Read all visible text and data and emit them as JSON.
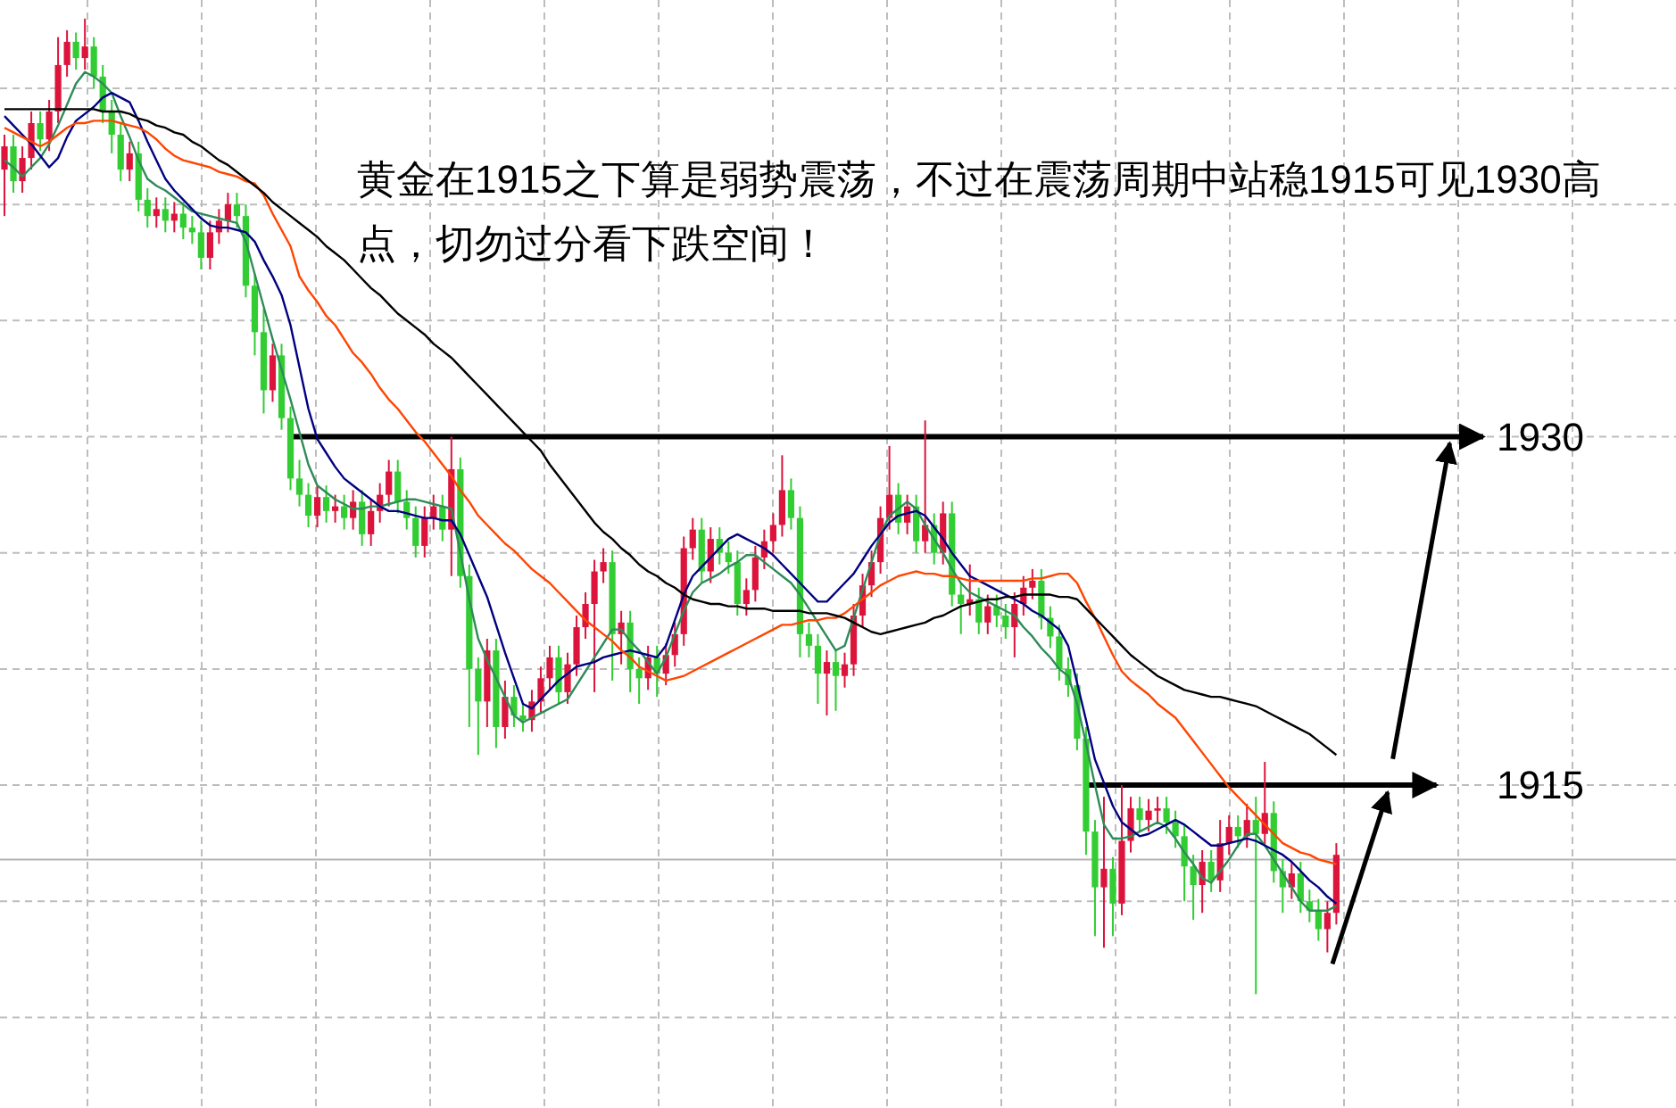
{
  "chart_data": {
    "type": "candlestick",
    "categories": [
      null,
      null,
      null,
      null,
      null,
      null,
      null,
      null,
      null,
      null,
      null,
      null,
      null,
      null,
      null,
      null,
      null,
      null,
      null,
      null,
      null,
      null,
      null,
      null,
      null,
      null,
      null,
      null,
      null,
      null,
      null,
      null,
      null,
      null,
      null,
      null,
      null,
      null,
      null,
      null,
      null,
      null,
      null,
      null,
      null,
      null,
      null,
      null,
      null,
      null,
      null,
      null,
      null,
      null,
      null,
      null,
      null,
      null,
      null,
      null,
      null,
      null,
      null,
      null,
      null,
      null,
      null,
      null,
      null,
      null,
      null,
      null,
      null,
      null,
      null,
      null,
      null,
      null,
      null,
      null,
      null,
      null,
      null,
      null,
      null,
      null,
      null,
      null,
      null,
      null,
      null,
      null,
      null,
      null,
      null,
      null,
      null,
      null,
      null,
      null,
      null,
      null,
      null,
      null,
      null,
      null,
      null,
      null,
      null,
      null,
      null,
      null,
      null,
      null,
      null,
      null,
      null,
      null,
      null,
      null,
      null,
      null,
      null,
      null,
      null,
      null,
      null,
      null,
      null,
      null,
      null,
      null,
      null,
      null,
      null,
      null,
      null,
      null,
      null,
      null,
      null,
      null,
      null,
      null,
      null,
      null,
      null,
      null,
      null,
      null
    ],
    "ohlc": [
      [
        1941.5,
        1943.0,
        1939.5,
        1942.5
      ],
      [
        1942.5,
        1943.0,
        1940.5,
        1941.0
      ],
      [
        1941.0,
        1942.5,
        1940.5,
        1942.0
      ],
      [
        1942.0,
        1944.0,
        1941.5,
        1943.5
      ],
      [
        1943.5,
        1944.0,
        1942.3,
        1942.8
      ],
      [
        1942.8,
        1944.5,
        1942.3,
        1944.0
      ],
      [
        1944.0,
        1947.2,
        1943.5,
        1946.0
      ],
      [
        1946.0,
        1947.5,
        1945.5,
        1947.0
      ],
      [
        1947.0,
        1947.4,
        1945.8,
        1946.3
      ],
      [
        1946.3,
        1948.0,
        1945.8,
        1946.8
      ],
      [
        1946.8,
        1947.2,
        1945.0,
        1945.5
      ],
      [
        1945.5,
        1946.0,
        1943.5,
        1944.0
      ],
      [
        1944.0,
        1944.5,
        1942.2,
        1943.0
      ],
      [
        1943.0,
        1943.5,
        1941.0,
        1941.5
      ],
      [
        1941.5,
        1942.7,
        1941.0,
        1942.2
      ],
      [
        1942.2,
        1942.7,
        1939.7,
        1940.2
      ],
      [
        1940.2,
        1940.7,
        1939.0,
        1939.5
      ],
      [
        1939.5,
        1940.3,
        1939.0,
        1939.8
      ],
      [
        1939.8,
        1940.3,
        1938.8,
        1939.3
      ],
      [
        1939.3,
        1940.1,
        1938.8,
        1939.6
      ],
      [
        1939.6,
        1940.1,
        1938.5,
        1939.0
      ],
      [
        1939.0,
        1939.5,
        1938.3,
        1938.8
      ],
      [
        1938.8,
        1939.3,
        1937.2,
        1937.7
      ],
      [
        1937.7,
        1939.3,
        1937.2,
        1938.8
      ],
      [
        1938.8,
        1939.8,
        1938.3,
        1939.3
      ],
      [
        1939.3,
        1940.5,
        1938.8,
        1940.0
      ],
      [
        1940.0,
        1940.5,
        1939.0,
        1939.5
      ],
      [
        1939.5,
        1940.0,
        1936.0,
        1936.5
      ],
      [
        1936.5,
        1937.0,
        1933.5,
        1934.5
      ],
      [
        1934.5,
        1935.5,
        1931.0,
        1932.0
      ],
      [
        1932.0,
        1934.0,
        1931.5,
        1933.5
      ],
      [
        1933.5,
        1934.0,
        1930.3,
        1930.8
      ],
      [
        1930.8,
        1931.3,
        1927.7,
        1928.2
      ],
      [
        1928.2,
        1929.0,
        1927.0,
        1927.5
      ],
      [
        1927.5,
        1928.0,
        1926.1,
        1926.6
      ],
      [
        1926.6,
        1927.9,
        1926.1,
        1927.4
      ],
      [
        1927.4,
        1927.9,
        1926.3,
        1926.8
      ],
      [
        1926.8,
        1927.5,
        1926.3,
        1927.0
      ],
      [
        1927.0,
        1927.5,
        1926.0,
        1926.5
      ],
      [
        1926.5,
        1927.7,
        1926.0,
        1927.2
      ],
      [
        1927.2,
        1927.7,
        1925.3,
        1925.8
      ],
      [
        1925.8,
        1927.3,
        1925.3,
        1926.8
      ],
      [
        1926.8,
        1928.0,
        1926.3,
        1927.5
      ],
      [
        1927.5,
        1929.0,
        1927.0,
        1928.5
      ],
      [
        1928.5,
        1929.0,
        1926.7,
        1927.2
      ],
      [
        1927.2,
        1927.7,
        1926.0,
        1926.5
      ],
      [
        1926.5,
        1927.0,
        1924.8,
        1925.3
      ],
      [
        1925.3,
        1927.0,
        1924.8,
        1926.5
      ],
      [
        1926.5,
        1927.5,
        1926.0,
        1927.0
      ],
      [
        1927.0,
        1927.5,
        1925.5,
        1926.0
      ],
      [
        1926.0,
        1930.0,
        1924.0,
        1928.6
      ],
      [
        1928.6,
        1929.1,
        1923.5,
        1924.0
      ],
      [
        1924.0,
        1924.5,
        1917.5,
        1920.0
      ],
      [
        1920.0,
        1920.5,
        1916.3,
        1918.6
      ],
      [
        1918.6,
        1921.3,
        1917.5,
        1920.8
      ],
      [
        1920.8,
        1921.3,
        1916.6,
        1917.5
      ],
      [
        1917.5,
        1919.5,
        1917.0,
        1918.8
      ],
      [
        1918.8,
        1919.3,
        1917.5,
        1918.0
      ],
      [
        1918.0,
        1918.5,
        1917.3,
        1917.8
      ],
      [
        1917.8,
        1919.1,
        1917.3,
        1918.6
      ],
      [
        1918.6,
        1920.1,
        1918.1,
        1919.6
      ],
      [
        1919.6,
        1921.0,
        1919.1,
        1920.5
      ],
      [
        1920.5,
        1921.0,
        1918.5,
        1919.0
      ],
      [
        1919.0,
        1920.7,
        1918.5,
        1920.2
      ],
      [
        1920.2,
        1922.3,
        1919.7,
        1921.8
      ],
      [
        1921.8,
        1923.3,
        1921.3,
        1922.8
      ],
      [
        1922.8,
        1924.7,
        1919.0,
        1924.2
      ],
      [
        1924.2,
        1925.2,
        1923.7,
        1924.6
      ],
      [
        1924.6,
        1925.1,
        1919.5,
        1921.5
      ],
      [
        1921.5,
        1922.5,
        1920.2,
        1922.0
      ],
      [
        1922.0,
        1922.5,
        1919.0,
        1920.0
      ],
      [
        1920.0,
        1920.5,
        1918.5,
        1919.6
      ],
      [
        1919.6,
        1921.0,
        1919.1,
        1920.5
      ],
      [
        1920.5,
        1921.0,
        1918.8,
        1919.8
      ],
      [
        1919.8,
        1921.1,
        1919.3,
        1920.6
      ],
      [
        1920.6,
        1922.0,
        1920.1,
        1921.5
      ],
      [
        1921.5,
        1925.7,
        1921.0,
        1925.2
      ],
      [
        1925.2,
        1926.5,
        1924.7,
        1926.0
      ],
      [
        1926.0,
        1926.5,
        1923.7,
        1924.2
      ],
      [
        1924.2,
        1926.1,
        1923.7,
        1925.6
      ],
      [
        1925.6,
        1926.1,
        1924.5,
        1925.0
      ],
      [
        1925.0,
        1925.5,
        1924.1,
        1924.6
      ],
      [
        1924.6,
        1925.1,
        1922.3,
        1922.8
      ],
      [
        1922.8,
        1923.9,
        1922.3,
        1923.4
      ],
      [
        1923.4,
        1925.3,
        1922.9,
        1924.8
      ],
      [
        1924.8,
        1926.0,
        1924.3,
        1925.5
      ],
      [
        1925.5,
        1926.7,
        1925.0,
        1926.2
      ],
      [
        1926.2,
        1929.2,
        1925.7,
        1927.7
      ],
      [
        1927.7,
        1928.2,
        1926.0,
        1926.5
      ],
      [
        1926.5,
        1927.0,
        1920.5,
        1921.5
      ],
      [
        1921.5,
        1922.0,
        1920.5,
        1921.0
      ],
      [
        1921.0,
        1921.5,
        1918.5,
        1919.8
      ],
      [
        1919.8,
        1920.8,
        1918.0,
        1920.3
      ],
      [
        1920.3,
        1920.8,
        1918.2,
        1919.7
      ],
      [
        1919.7,
        1920.7,
        1919.2,
        1920.2
      ],
      [
        1920.2,
        1922.8,
        1919.7,
        1922.3
      ],
      [
        1922.3,
        1924.1,
        1921.8,
        1923.6
      ],
      [
        1923.6,
        1925.1,
        1923.1,
        1924.6
      ],
      [
        1924.6,
        1927.0,
        1924.1,
        1926.5
      ],
      [
        1926.5,
        1929.6,
        1926.0,
        1927.5
      ],
      [
        1927.5,
        1928.0,
        1925.8,
        1926.3
      ],
      [
        1926.3,
        1927.5,
        1925.8,
        1927.0
      ],
      [
        1927.0,
        1927.5,
        1925.0,
        1925.5
      ],
      [
        1925.5,
        1930.7,
        1925.0,
        1926.2
      ],
      [
        1926.2,
        1926.7,
        1924.5,
        1925.0
      ],
      [
        1925.0,
        1927.2,
        1924.5,
        1926.7
      ],
      [
        1926.7,
        1927.2,
        1922.7,
        1923.2
      ],
      [
        1923.2,
        1923.7,
        1921.5,
        1922.8
      ],
      [
        1922.8,
        1924.5,
        1922.3,
        1923.0
      ],
      [
        1923.0,
        1923.5,
        1921.5,
        1922.0
      ],
      [
        1922.0,
        1923.2,
        1921.5,
        1922.7
      ],
      [
        1922.7,
        1923.2,
        1921.8,
        1922.3
      ],
      [
        1922.3,
        1922.8,
        1921.3,
        1921.8
      ],
      [
        1921.8,
        1923.3,
        1920.5,
        1922.8
      ],
      [
        1922.8,
        1924.0,
        1922.3,
        1923.5
      ],
      [
        1923.5,
        1924.3,
        1923.0,
        1923.8
      ],
      [
        1923.8,
        1924.3,
        1921.7,
        1922.2
      ],
      [
        1922.2,
        1922.7,
        1920.9,
        1921.4
      ],
      [
        1921.4,
        1921.9,
        1919.5,
        1920.0
      ],
      [
        1920.0,
        1920.5,
        1918.8,
        1919.3
      ],
      [
        1919.3,
        1919.8,
        1916.5,
        1917.0
      ],
      [
        1917.0,
        1917.5,
        1912.0,
        1913.0
      ],
      [
        1913.0,
        1913.5,
        1908.5,
        1910.6
      ],
      [
        1910.6,
        1914.5,
        1908.0,
        1911.4
      ],
      [
        1911.4,
        1911.9,
        1908.5,
        1909.9
      ],
      [
        1909.9,
        1915.0,
        1909.4,
        1912.6
      ],
      [
        1912.6,
        1914.5,
        1912.1,
        1914.0
      ],
      [
        1914.0,
        1914.5,
        1913.0,
        1913.5
      ],
      [
        1913.5,
        1914.4,
        1913.0,
        1913.9
      ],
      [
        1913.9,
        1914.5,
        1913.4,
        1914.0
      ],
      [
        1914.0,
        1914.5,
        1912.9,
        1913.4
      ],
      [
        1913.4,
        1913.9,
        1912.3,
        1912.8
      ],
      [
        1912.8,
        1913.3,
        1910.0,
        1911.5
      ],
      [
        1911.5,
        1912.0,
        1909.2,
        1910.7
      ],
      [
        1910.7,
        1912.2,
        1909.5,
        1911.7
      ],
      [
        1911.7,
        1912.2,
        1910.4,
        1910.9
      ],
      [
        1910.9,
        1913.5,
        1910.4,
        1912.5
      ],
      [
        1912.5,
        1913.7,
        1912.0,
        1913.2
      ],
      [
        1913.2,
        1913.7,
        1912.3,
        1912.8
      ],
      [
        1912.8,
        1914.2,
        1912.3,
        1913.5
      ],
      [
        1913.5,
        1914.5,
        1906.0,
        1912.9
      ],
      [
        1912.9,
        1916.0,
        1912.4,
        1913.8
      ],
      [
        1913.8,
        1914.3,
        1910.8,
        1911.3
      ],
      [
        1911.3,
        1911.8,
        1909.5,
        1910.6
      ],
      [
        1910.6,
        1911.7,
        1910.1,
        1911.2
      ],
      [
        1911.2,
        1911.7,
        1909.5,
        1910.0
      ],
      [
        1910.0,
        1910.5,
        1909.1,
        1909.6
      ],
      [
        1909.6,
        1910.1,
        1908.3,
        1908.8
      ],
      [
        1908.8,
        1910.0,
        1907.8,
        1909.5
      ],
      [
        1909.5,
        1912.5,
        1909.0,
        1912.0
      ]
    ],
    "series": [
      {
        "type": "line",
        "color": "#2e8b57",
        "values": [
          1941.9,
          1941.6,
          1941.2,
          1941.6,
          1942.0,
          1942.6,
          1943.4,
          1944.3,
          1945.2,
          1945.7,
          1945.5,
          1945.2,
          1944.8,
          1943.8,
          1942.9,
          1941.9,
          1941.1,
          1940.8,
          1940.6,
          1940.3,
          1940.0,
          1939.7,
          1939.6,
          1939.5,
          1939.4,
          1939.3,
          1939.2,
          1938.4,
          1937.0,
          1935.6,
          1934.2,
          1932.9,
          1931.6,
          1930.2,
          1928.8,
          1927.9,
          1927.6,
          1927.3,
          1927.1,
          1926.9,
          1926.9,
          1927.0,
          1927.0,
          1927.1,
          1927.2,
          1927.3,
          1927.3,
          1927.2,
          1927.1,
          1927.0,
          1926.9,
          1925.0,
          1923.0,
          1921.3,
          1920.4,
          1919.6,
          1918.8,
          1918.0,
          1917.7,
          1917.9,
          1918.1,
          1918.3,
          1918.5,
          1918.7,
          1919.3,
          1919.9,
          1920.5,
          1921.1,
          1921.7,
          1921.7,
          1921.2,
          1920.8,
          1920.3,
          1919.8,
          1920.5,
          1921.5,
          1922.5,
          1923.3,
          1923.7,
          1923.9,
          1924.1,
          1924.4,
          1924.6,
          1924.9,
          1924.9,
          1924.6,
          1924.3,
          1924.0,
          1923.7,
          1923.2,
          1922.6,
          1922.0,
          1921.4,
          1920.8,
          1921.0,
          1922.2,
          1923.4,
          1924.6,
          1925.8,
          1926.6,
          1926.9,
          1927.2,
          1926.9,
          1926.2,
          1925.6,
          1925.0,
          1924.3,
          1923.7,
          1923.3,
          1923.1,
          1922.9,
          1922.7,
          1922.5,
          1922.3,
          1921.8,
          1921.4,
          1920.9,
          1920.5,
          1920.0,
          1919.7,
          1918.5,
          1916.8,
          1915.0,
          1913.3,
          1912.7,
          1912.7,
          1912.8,
          1913.0,
          1913.2,
          1913.4,
          1913.2,
          1912.7,
          1912.1,
          1911.6,
          1911.0,
          1910.8,
          1911.3,
          1911.8,
          1912.4,
          1912.9,
          1912.9,
          1912.4,
          1911.8,
          1911.2,
          1910.6,
          1910.0,
          1909.6,
          1909.6,
          1909.6,
          1909.8
        ]
      },
      {
        "type": "line",
        "color": "#000080",
        "values": [
          1943.8,
          1943.4,
          1943.0,
          1942.6,
          1942.1,
          1941.6,
          1942.0,
          1942.9,
          1943.6,
          1943.9,
          1944.2,
          1944.6,
          1944.8,
          1944.6,
          1944.4,
          1943.6,
          1942.7,
          1941.9,
          1941.1,
          1940.6,
          1940.2,
          1939.8,
          1939.4,
          1939.1,
          1939.0,
          1939.0,
          1938.9,
          1938.8,
          1938.4,
          1937.6,
          1936.9,
          1936.1,
          1934.8,
          1933.0,
          1931.2,
          1929.9,
          1929.3,
          1928.7,
          1928.2,
          1927.9,
          1927.6,
          1927.3,
          1927.0,
          1926.8,
          1926.8,
          1926.7,
          1926.6,
          1926.5,
          1926.5,
          1926.4,
          1926.4,
          1925.8,
          1924.9,
          1924.0,
          1923.1,
          1921.9,
          1920.7,
          1919.6,
          1918.5,
          1918.3,
          1918.7,
          1919.1,
          1919.5,
          1919.8,
          1920.1,
          1920.2,
          1920.3,
          1920.5,
          1920.6,
          1920.7,
          1920.8,
          1920.7,
          1920.6,
          1920.5,
          1921.0,
          1922.1,
          1923.2,
          1924.0,
          1924.4,
          1924.8,
          1925.2,
          1925.6,
          1925.8,
          1925.6,
          1925.4,
          1925.2,
          1924.9,
          1924.5,
          1924.1,
          1923.7,
          1923.3,
          1922.9,
          1922.9,
          1923.3,
          1923.7,
          1924.1,
          1924.7,
          1925.3,
          1925.8,
          1926.3,
          1926.6,
          1926.7,
          1926.8,
          1926.6,
          1926.1,
          1925.6,
          1925.0,
          1924.5,
          1924.0,
          1923.8,
          1923.6,
          1923.4,
          1923.2,
          1923.0,
          1922.8,
          1922.5,
          1922.3,
          1922.0,
          1921.7,
          1921.0,
          1919.4,
          1917.8,
          1916.1,
          1915.1,
          1914.1,
          1913.4,
          1913.1,
          1912.8,
          1912.9,
          1913.1,
          1913.3,
          1913.5,
          1913.3,
          1913.0,
          1912.7,
          1912.4,
          1912.4,
          1912.5,
          1912.6,
          1912.7,
          1912.6,
          1912.4,
          1912.2,
          1912.0,
          1911.7,
          1911.3,
          1910.9,
          1910.6,
          1910.2,
          1909.9
        ]
      },
      {
        "type": "line",
        "color": "#ff4500",
        "values": [
          1943.3,
          1943.1,
          1942.9,
          1942.7,
          1942.5,
          1942.7,
          1943.0,
          1943.3,
          1943.5,
          1943.5,
          1943.6,
          1943.6,
          1943.6,
          1943.5,
          1943.4,
          1943.3,
          1943.1,
          1942.8,
          1942.4,
          1942.1,
          1941.9,
          1941.8,
          1941.7,
          1941.6,
          1941.4,
          1941.3,
          1941.2,
          1941.0,
          1940.9,
          1940.4,
          1939.6,
          1938.9,
          1938.2,
          1936.9,
          1936.3,
          1935.8,
          1935.2,
          1934.8,
          1934.2,
          1933.6,
          1933.2,
          1932.7,
          1932.1,
          1931.6,
          1931.2,
          1930.7,
          1930.2,
          1929.8,
          1929.3,
          1928.8,
          1928.3,
          1927.7,
          1927.2,
          1926.6,
          1926.2,
          1925.8,
          1925.4,
          1925.1,
          1924.7,
          1924.3,
          1924.0,
          1923.7,
          1923.3,
          1922.9,
          1922.5,
          1922.1,
          1921.8,
          1921.5,
          1921.2,
          1920.8,
          1920.5,
          1920.1,
          1919.9,
          1919.7,
          1919.5,
          1919.6,
          1919.7,
          1919.9,
          1920.1,
          1920.3,
          1920.5,
          1920.7,
          1920.9,
          1921.1,
          1921.3,
          1921.5,
          1921.7,
          1921.9,
          1921.9,
          1922.0,
          1922.1,
          1922.1,
          1922.2,
          1922.2,
          1922.4,
          1922.7,
          1923.0,
          1923.3,
          1923.6,
          1923.8,
          1924.0,
          1924.1,
          1924.2,
          1924.1,
          1924.1,
          1924.0,
          1924.0,
          1923.9,
          1923.8,
          1923.8,
          1923.8,
          1923.8,
          1923.8,
          1923.8,
          1923.8,
          1923.9,
          1923.9,
          1924.0,
          1924.1,
          1924.1,
          1923.7,
          1922.9,
          1922.2,
          1921.4,
          1920.6,
          1919.9,
          1919.5,
          1919.2,
          1918.9,
          1918.5,
          1918.2,
          1917.9,
          1917.4,
          1916.9,
          1916.4,
          1915.9,
          1915.4,
          1914.9,
          1914.5,
          1914.1,
          1913.7,
          1913.3,
          1912.9,
          1912.5,
          1912.3,
          1912.1,
          1912.0,
          1911.8,
          1911.7,
          1911.6
        ]
      },
      {
        "type": "line",
        "color": "#000000",
        "values": [
          1944.1,
          1944.1,
          1944.1,
          1944.1,
          1944.1,
          1944.1,
          1944.1,
          1944.1,
          1944.1,
          1944.1,
          1944.1,
          1944.0,
          1944.0,
          1944.0,
          1943.9,
          1943.7,
          1943.6,
          1943.4,
          1943.3,
          1943.1,
          1943.0,
          1942.7,
          1942.5,
          1942.2,
          1941.9,
          1941.7,
          1941.4,
          1941.1,
          1940.8,
          1940.5,
          1940.1,
          1939.8,
          1939.5,
          1939.2,
          1938.9,
          1938.6,
          1938.2,
          1937.9,
          1937.6,
          1937.2,
          1936.8,
          1936.4,
          1936.1,
          1935.7,
          1935.3,
          1935.0,
          1934.7,
          1934.4,
          1934.0,
          1933.7,
          1933.4,
          1933.0,
          1932.6,
          1932.2,
          1931.8,
          1931.4,
          1931.0,
          1930.6,
          1930.2,
          1929.8,
          1929.4,
          1928.8,
          1928.3,
          1927.8,
          1927.3,
          1926.8,
          1926.3,
          1925.9,
          1925.6,
          1925.2,
          1924.9,
          1924.5,
          1924.2,
          1924.0,
          1923.7,
          1923.5,
          1923.2,
          1923.0,
          1922.9,
          1922.8,
          1922.8,
          1922.7,
          1922.7,
          1922.6,
          1922.6,
          1922.6,
          1922.5,
          1922.5,
          1922.5,
          1922.5,
          1922.4,
          1922.4,
          1922.4,
          1922.3,
          1922.2,
          1922.0,
          1921.8,
          1921.6,
          1921.5,
          1921.6,
          1921.7,
          1921.8,
          1921.9,
          1922.0,
          1922.2,
          1922.3,
          1922.5,
          1922.7,
          1922.8,
          1922.9,
          1923.0,
          1923.0,
          1923.1,
          1923.1,
          1923.2,
          1923.2,
          1923.2,
          1923.2,
          1923.1,
          1923.1,
          1923.0,
          1922.6,
          1922.2,
          1921.8,
          1921.4,
          1921.0,
          1920.6,
          1920.3,
          1920.0,
          1919.7,
          1919.5,
          1919.3,
          1919.1,
          1919.0,
          1918.9,
          1918.8,
          1918.8,
          1918.7,
          1918.6,
          1918.5,
          1918.4,
          1918.2,
          1918.0,
          1917.8,
          1917.6,
          1917.4,
          1917.2,
          1916.9,
          1916.6,
          1916.3
        ]
      }
    ],
    "ylim": [
      1901.1,
      1948.8
    ],
    "yticks": [
      {
        "value": 1905,
        "label": null
      },
      {
        "value": 1910,
        "label": null
      },
      {
        "value": 1915,
        "label": "1915"
      },
      {
        "value": 1920,
        "label": null
      },
      {
        "value": 1925,
        "label": null
      },
      {
        "value": 1930,
        "label": "1930"
      },
      {
        "value": 1935,
        "label": null
      },
      {
        "value": 1940,
        "label": null
      },
      {
        "value": 1945,
        "label": null
      }
    ],
    "tick_labels": "y",
    "grid": true,
    "ref_lines": [
      {
        "axis": "y",
        "value": 1930,
        "color": "#000000"
      },
      {
        "axis": "y",
        "value": 1915,
        "color": "#000000"
      },
      {
        "axis": "y",
        "value": 1911.8,
        "color": "#b4b4b4"
      }
    ],
    "annotations": [
      "黄金在1915之下算是弱势震荡，不过在震荡周期中站稳1915可见1930高点，切勿过分看下跌空间！"
    ]
  }
}
